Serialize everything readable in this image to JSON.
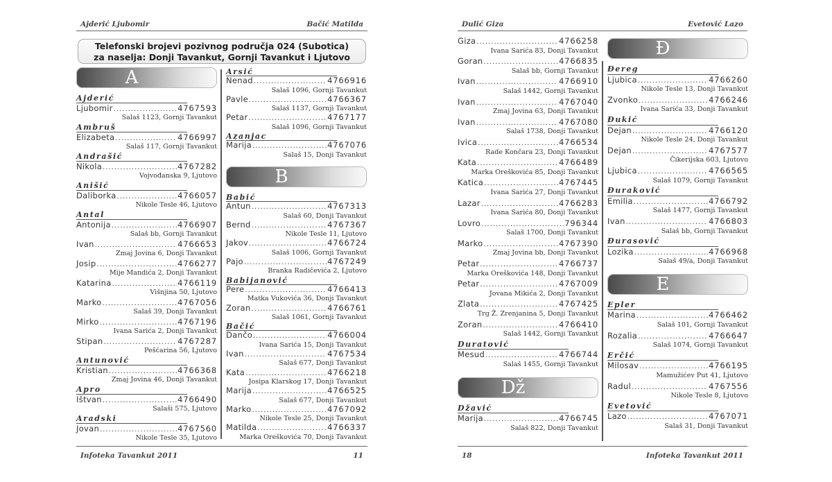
{
  "pages": [
    {
      "header_left": "Ajderić Ljubomir",
      "header_right": "Bačić Matilda",
      "title_line1": "Telefonski brojevi pozivnog područja 024 (Subotica)",
      "title_line2": "za naselja: Donji Tavankut, Gornji Tavankut i Ljutovo",
      "footer_left": "Infoteka Tavankut 2011",
      "footer_right": "11",
      "columns": [
        [
          {
            "type": "letter",
            "text": "A"
          },
          {
            "type": "surname",
            "text": "Ajderić"
          },
          {
            "type": "entry",
            "name": "Ljubomir",
            "phone": "4767593",
            "address": "Salaš 1123, Gornji Tavankut"
          },
          {
            "type": "surname",
            "text": "Ambruš"
          },
          {
            "type": "entry",
            "name": "Elizabeta",
            "phone": "4766997",
            "address": "Salaš 117, Gornji Tavankut"
          },
          {
            "type": "surname",
            "text": "Andrašić"
          },
          {
            "type": "entry",
            "name": "Nikola",
            "phone": "4767282",
            "address": "Vojvođanska 9, Ljutovo"
          },
          {
            "type": "surname",
            "text": "Anišić"
          },
          {
            "type": "entry",
            "name": "Daliborka",
            "phone": "4766057",
            "address": "Nikole Tesle 46, Ljutovo"
          },
          {
            "type": "surname",
            "text": "Antal"
          },
          {
            "type": "entry",
            "name": "Antonija",
            "phone": "4766907",
            "address": "Salaš bb, Gornji Tavankut"
          },
          {
            "type": "entry",
            "name": "Ivan",
            "phone": "4766653",
            "address": "Zmaj Jovina 6, Donji Tavankut"
          },
          {
            "type": "entry",
            "name": "Josip",
            "phone": "4766277",
            "address": "Mije Mandića 2, Donji Tavankut"
          },
          {
            "type": "entry",
            "name": "Katarina",
            "phone": "4766119",
            "address": "Višnjina 50, Ljutovo"
          },
          {
            "type": "entry",
            "name": "Marko",
            "phone": "4767056",
            "address": "Salaš 39, Donji Tavankut"
          },
          {
            "type": "entry",
            "name": "Mirko",
            "phone": "4767196",
            "address": "Ivana Sarića 2, Donji Tavankut"
          },
          {
            "type": "entry",
            "name": "Stipan",
            "phone": "4767287",
            "address": "Pešćarina 56, Ljutovo"
          },
          {
            "type": "surname",
            "text": "Antunović"
          },
          {
            "type": "entry",
            "name": "Kristian",
            "phone": "4766368",
            "address": "Zmaj Jovina 46, Donji Tavankut"
          },
          {
            "type": "surname",
            "text": "Apro"
          },
          {
            "type": "entry",
            "name": "Ištvan",
            "phone": "4766490",
            "address": "Salaši 575, Ljutovo"
          },
          {
            "type": "surname",
            "text": "Aradski"
          },
          {
            "type": "entry",
            "name": "Jovan",
            "phone": "4767560",
            "address": "Nikole Tesle 35, Ljutovo"
          }
        ],
        [
          {
            "type": "surname",
            "text": "Arsić"
          },
          {
            "type": "entry",
            "name": "Nenad",
            "phone": "4766916",
            "address": "Salaš 1096, Gornji Tavankut"
          },
          {
            "type": "entry",
            "name": "Pavle",
            "phone": "4766367",
            "address": "Salaš 1137, Gornji Tavankut"
          },
          {
            "type": "entry",
            "name": "Petar",
            "phone": "4767177",
            "address": "Salaš 1096, Gornji Tavankut"
          },
          {
            "type": "surname",
            "text": "Azanjac"
          },
          {
            "type": "entry",
            "name": "Marija",
            "phone": "4767076",
            "address": "Salaš 15, Donji Tavankut"
          },
          {
            "type": "letter",
            "text": "B"
          },
          {
            "type": "surname",
            "text": "Babić"
          },
          {
            "type": "entry",
            "name": "Antun",
            "phone": "4767313",
            "address": "Salaš 60, Donji Tavankut"
          },
          {
            "type": "entry",
            "name": "Bernd",
            "phone": "4767367",
            "address": "Nikole Tesle 11, Ljutovo"
          },
          {
            "type": "entry",
            "name": "Jakov",
            "phone": "4766724",
            "address": "Salaš 1006, Gornji Tavankut"
          },
          {
            "type": "entry",
            "name": "Pajo",
            "phone": "4767249",
            "address": "Branka Radičevića 2, Ljutovo"
          },
          {
            "type": "surname",
            "text": "Babijanović"
          },
          {
            "type": "entry",
            "name": "Pere",
            "phone": "4766413",
            "address": "Matka Vukovića 36, Donji Tavankut"
          },
          {
            "type": "entry",
            "name": "Zoran",
            "phone": "4766761",
            "address": "Salaš 1061, Gornji Tavankut"
          },
          {
            "type": "surname",
            "text": "Bačić"
          },
          {
            "type": "entry",
            "name": "Dančo",
            "phone": "4766004",
            "address": "Ivana Sarića 15, Donji Tavankut"
          },
          {
            "type": "entry",
            "name": "Ivan",
            "phone": "4767534",
            "address": "Salaš 677, Donji Tavankut"
          },
          {
            "type": "entry",
            "name": "Kata",
            "phone": "4766218",
            "address": "Josipa Klarskog 17, Donji Tavankut"
          },
          {
            "type": "entry",
            "name": "Marija",
            "phone": "4766525",
            "address": "Salaš 677, Donji Tavankut"
          },
          {
            "type": "entry",
            "name": "Marko",
            "phone": "4767092",
            "address": "Nikole Tesle 25, Donji Tavankut"
          },
          {
            "type": "entry",
            "name": "Matilda",
            "phone": "4766337",
            "address": "Marka Oreškovića 70, Donji Tavankut"
          }
        ]
      ]
    },
    {
      "header_left": "Dulić Giza",
      "header_right": "Evetović Lazo",
      "footer_left": "18",
      "footer_right": "Infoteka Tavankut 2011",
      "columns": [
        [
          {
            "type": "entry",
            "name": "Giza",
            "phone": "4766258",
            "address": "Ivana Sarića 83, Donji Tavankut"
          },
          {
            "type": "entry",
            "name": "Goran",
            "phone": "4766835",
            "address": "Salaš bb, Gornji Tavankut"
          },
          {
            "type": "entry",
            "name": "Ivan",
            "phone": "4766910",
            "address": "Salaš 1442, Gornji Tavankut"
          },
          {
            "type": "entry",
            "name": "Ivan",
            "phone": "4767040",
            "address": "Zmaj Jovina 63, Donji Tavankut"
          },
          {
            "type": "entry",
            "name": "Ivan",
            "phone": "4767080",
            "address": "Salaš 1738, Donji Tavankut"
          },
          {
            "type": "entry",
            "name": "Ivica",
            "phone": "4766534",
            "address": "Rade Končara 23, Donji Tavankut"
          },
          {
            "type": "entry",
            "name": "Kata",
            "phone": "4766489",
            "address": "Marka Oreškovića 85, Donji Tavankut"
          },
          {
            "type": "entry",
            "name": "Katica",
            "phone": "4767445",
            "address": "Ivana Sarića 27, Donji Tavankut"
          },
          {
            "type": "entry",
            "name": "Lazar",
            "phone": "4766283",
            "address": "Ivana Sarića 80, Donji Tavankut"
          },
          {
            "type": "entry",
            "name": "Lovro",
            "phone": "796344",
            "address": "Salaš 1700, Donji Tavankut"
          },
          {
            "type": "entry",
            "name": "Marko",
            "phone": "4767390",
            "address": "Zmaj Jovina bb, Donji Tavankut"
          },
          {
            "type": "entry",
            "name": "Petar",
            "phone": "4766737",
            "address": "Marka Oreškovića 148, Donji Tavankut"
          },
          {
            "type": "entry",
            "name": "Petar",
            "phone": "4767009",
            "address": "Jovana Mikića 2, Donji Tavankut"
          },
          {
            "type": "entry",
            "name": "Zlata",
            "phone": "4767425",
            "address": "Trg Ž. Zrenjanina 5, Donji Tavankut"
          },
          {
            "type": "entry",
            "name": "Zoran",
            "phone": "4766410",
            "address": "Salaš 1442, Gornji Tavankut"
          },
          {
            "type": "surname",
            "text": "Duratović"
          },
          {
            "type": "entry",
            "name": "Mesud",
            "phone": "4766744",
            "address": "Salaš 1455, Gornji Tavankut"
          },
          {
            "type": "letter",
            "text": "Dž"
          },
          {
            "type": "surname",
            "text": "Džavić"
          },
          {
            "type": "entry",
            "name": "Marija",
            "phone": "4766745",
            "address": "Salaš 822, Donji Tavankut"
          }
        ],
        [
          {
            "type": "letter",
            "text": "Đ"
          },
          {
            "type": "surname",
            "text": "Đereg"
          },
          {
            "type": "entry",
            "name": "Ljubica",
            "phone": "4766260",
            "address": "Nikole Tesle 13, Donji Tavankut"
          },
          {
            "type": "entry",
            "name": "Zvonko",
            "phone": "4766246",
            "address": "Ivana Sarića 33, Donji Tavankut"
          },
          {
            "type": "surname",
            "text": "Đukić"
          },
          {
            "type": "entry",
            "name": "Dejan",
            "phone": "4766120",
            "address": "Nikole Tesle 24, Donji Tavankut"
          },
          {
            "type": "entry",
            "name": "Dejan",
            "phone": "4767577",
            "address": "Čikerijska 603, Ljutovo"
          },
          {
            "type": "entry",
            "name": "Ljubica",
            "phone": "4766565",
            "address": "Salaš 1079, Gornji Tavankut"
          },
          {
            "type": "surname",
            "text": "Đuraković"
          },
          {
            "type": "entry",
            "name": "Emilia",
            "phone": "4766792",
            "address": "Salaš 1477, Gornji Tavankut"
          },
          {
            "type": "entry",
            "name": "Ivan",
            "phone": "4766803",
            "address": "Salaš bb, Gornji Tavankut"
          },
          {
            "type": "surname",
            "text": "Đurasović"
          },
          {
            "type": "entry",
            "name": "Lozika",
            "phone": "4766968",
            "address": "Salaš 49/a, Donji Tavankut"
          },
          {
            "type": "letter",
            "text": "E"
          },
          {
            "type": "surname",
            "text": "Epler"
          },
          {
            "type": "entry",
            "name": "Marina",
            "phone": "4766462",
            "address": "Salaš 101, Gornji Tavankut"
          },
          {
            "type": "entry",
            "name": "Rozalia",
            "phone": "4766647",
            "address": "Salaš 1074, Gornji Tavankut"
          },
          {
            "type": "surname",
            "text": "Erčić"
          },
          {
            "type": "entry",
            "name": "Milosav",
            "phone": "4766195",
            "address": "Mamužićev Put 41, Ljutovo"
          },
          {
            "type": "entry",
            "name": "Radul",
            "phone": "4767556",
            "address": "Nikole Tesle 8, Ljutovo"
          },
          {
            "type": "surname",
            "text": "Evetović"
          },
          {
            "type": "entry",
            "name": "Lazo",
            "phone": "4767071",
            "address": "Salaš 31, Donji Tavankut"
          }
        ]
      ]
    }
  ]
}
